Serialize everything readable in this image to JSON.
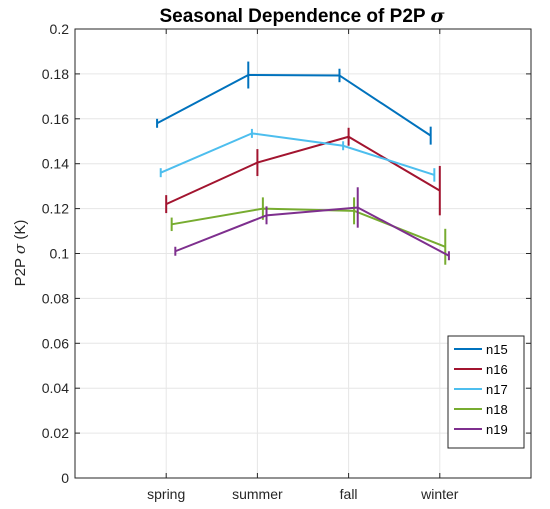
{
  "chart_data": {
    "type": "line",
    "title": "Seasonal Dependence of P2P",
    "title_symbol": "σ",
    "ylabel": "P2P",
    "ylabel_symbol": "σ",
    "ylabel_unit": "(K)",
    "xlabel": "",
    "categories": [
      "spring",
      "summer",
      "fall",
      "winter"
    ],
    "ylim": [
      0,
      0.2
    ],
    "yticks": [
      "0",
      "0.02",
      "0.04",
      "0.06",
      "0.08",
      "0.1",
      "0.12",
      "0.14",
      "0.16",
      "0.18",
      "0.2"
    ],
    "grid": true,
    "legend_position": "bottom-right",
    "series": [
      {
        "name": "n15",
        "color": "#0072BD",
        "offset": -0.1,
        "values": [
          0.158,
          0.1795,
          0.1793,
          0.1525
        ],
        "errors": [
          0.002,
          0.006,
          0.003,
          0.004
        ]
      },
      {
        "name": "n16",
        "color": "#A2142F",
        "offset": 0.0,
        "values": [
          0.122,
          0.1405,
          0.152,
          0.128
        ],
        "errors": [
          0.004,
          0.006,
          0.004,
          0.011
        ]
      },
      {
        "name": "n17",
        "color": "#4DBEEE",
        "offset": -0.06,
        "values": [
          0.136,
          0.1535,
          0.148,
          0.135
        ],
        "errors": [
          0.002,
          0.002,
          0.002,
          0.003
        ]
      },
      {
        "name": "n18",
        "color": "#77AC30",
        "offset": 0.06,
        "values": [
          0.113,
          0.12,
          0.119,
          0.103
        ],
        "errors": [
          0.003,
          0.005,
          0.006,
          0.008
        ]
      },
      {
        "name": "n19",
        "color": "#7E2F8E",
        "offset": 0.1,
        "values": [
          0.101,
          0.117,
          0.1205,
          0.099
        ],
        "errors": [
          0.002,
          0.004,
          0.009,
          0.002
        ]
      }
    ]
  }
}
